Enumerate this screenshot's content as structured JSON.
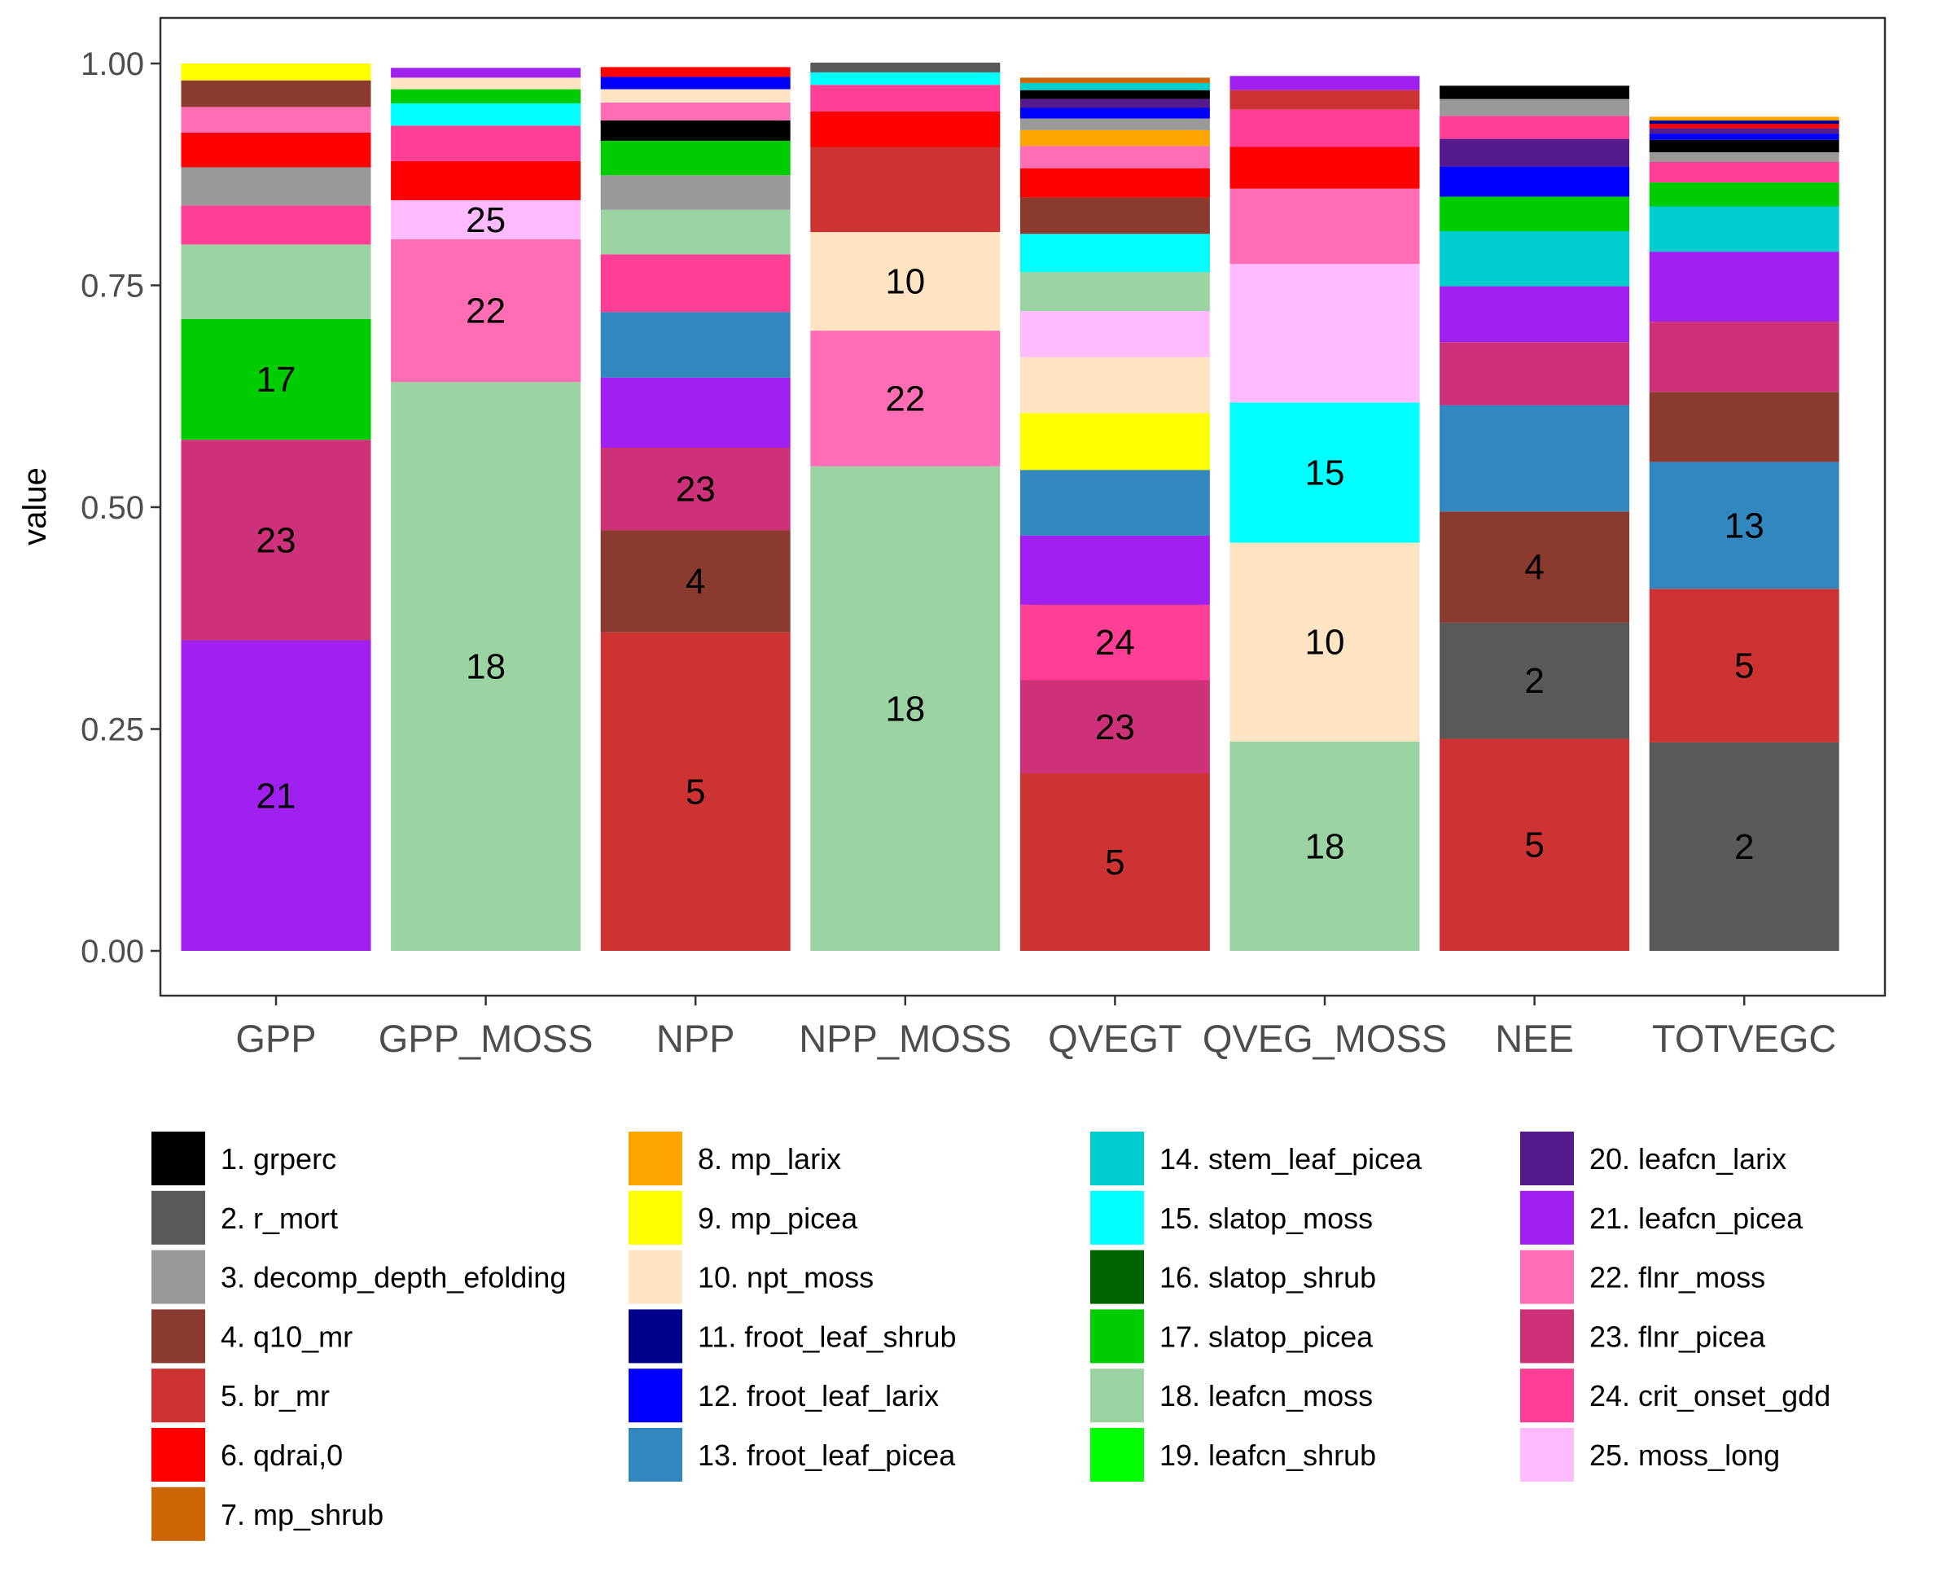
{
  "chart_data": {
    "type": "bar",
    "stacked": true,
    "xlabel": "",
    "ylabel": "value",
    "ylim": [
      -0.05,
      1.05
    ],
    "yticks": [
      {
        "value": 0.0,
        "label": "0.00"
      },
      {
        "value": 0.25,
        "label": "0.25"
      },
      {
        "value": 0.5,
        "label": "0.50"
      },
      {
        "value": 0.75,
        "label": "0.75"
      },
      {
        "value": 1.0,
        "label": "1.00"
      }
    ],
    "grid": false,
    "legend_position": "bottom",
    "categories": [
      "GPP",
      "GPP_MOSS",
      "NPP",
      "NPP_MOSS",
      "QVEGT",
      "QVEG_MOSS",
      "NEE",
      "TOTVEGC"
    ],
    "legend": [
      {
        "id": 1,
        "label": "1. grperc",
        "color": "#000000"
      },
      {
        "id": 2,
        "label": "2. r_mort",
        "color": "#595959"
      },
      {
        "id": 3,
        "label": "3. decomp_depth_efolding",
        "color": "#999999"
      },
      {
        "id": 4,
        "label": "4. q10_mr",
        "color": "#8B3A30"
      },
      {
        "id": 5,
        "label": "5. br_mr",
        "color": "#CD3333"
      },
      {
        "id": 6,
        "label": "6. qdrai,0",
        "color": "#FF0000"
      },
      {
        "id": 7,
        "label": "7. mp_shrub",
        "color": "#CD6600"
      },
      {
        "id": 8,
        "label": "8. mp_larix",
        "color": "#FFA500"
      },
      {
        "id": 9,
        "label": "9. mp_picea",
        "color": "#FFFF00"
      },
      {
        "id": 10,
        "label": "10. npt_moss",
        "color": "#FFE4C4"
      },
      {
        "id": 11,
        "label": "11. froot_leaf_shrub",
        "color": "#00008B"
      },
      {
        "id": 12,
        "label": "12. froot_leaf_larix",
        "color": "#0000FF"
      },
      {
        "id": 13,
        "label": "13. froot_leaf_picea",
        "color": "#3187BE"
      },
      {
        "id": 14,
        "label": "14. stem_leaf_picea",
        "color": "#00CDCD"
      },
      {
        "id": 15,
        "label": "15. slatop_moss",
        "color": "#00FFFF"
      },
      {
        "id": 16,
        "label": "16. slatop_shrub",
        "color": "#006400"
      },
      {
        "id": 17,
        "label": "17. slatop_picea",
        "color": "#00CD00"
      },
      {
        "id": 18,
        "label": "18. leafcn_moss",
        "color": "#9BD4A2"
      },
      {
        "id": 19,
        "label": "19. leafcn_shrub",
        "color": "#00FF00"
      },
      {
        "id": 20,
        "label": "20. leafcn_larix",
        "color": "#551A8B"
      },
      {
        "id": 21,
        "label": "21. leafcn_picea",
        "color": "#A020F0"
      },
      {
        "id": 22,
        "label": "22. flnr_moss",
        "color": "#FF6EB4"
      },
      {
        "id": 23,
        "label": "23. flnr_picea",
        "color": "#CD3278"
      },
      {
        "id": 24,
        "label": "24. crit_onset_gdd",
        "color": "#FF3E96"
      },
      {
        "id": 25,
        "label": "25. moss_long",
        "color": "#FFBBFF"
      }
    ],
    "stacks": [
      {
        "category": "GPP",
        "segments": [
          {
            "param": 21,
            "value": 0.35,
            "label": "21"
          },
          {
            "param": 23,
            "value": 0.226,
            "label": "23"
          },
          {
            "param": 17,
            "value": 0.136,
            "label": "17"
          },
          {
            "param": 18,
            "value": 0.084,
            "label": ""
          },
          {
            "param": 24,
            "value": 0.044,
            "label": ""
          },
          {
            "param": 3,
            "value": 0.043,
            "label": ""
          },
          {
            "param": 6,
            "value": 0.039,
            "label": ""
          },
          {
            "param": 22,
            "value": 0.029,
            "label": ""
          },
          {
            "param": 4,
            "value": 0.03,
            "label": ""
          },
          {
            "param": 9,
            "value": 0.019,
            "label": ""
          }
        ]
      },
      {
        "category": "GPP_MOSS",
        "segments": [
          {
            "param": 18,
            "value": 0.641,
            "label": "18"
          },
          {
            "param": 22,
            "value": 0.161,
            "label": "22"
          },
          {
            "param": 25,
            "value": 0.044,
            "label": "25"
          },
          {
            "param": 6,
            "value": 0.044,
            "label": ""
          },
          {
            "param": 24,
            "value": 0.04,
            "label": ""
          },
          {
            "param": 15,
            "value": 0.025,
            "label": ""
          },
          {
            "param": 17,
            "value": 0.016,
            "label": ""
          },
          {
            "param": 10,
            "value": 0.013,
            "label": ""
          },
          {
            "param": 21,
            "value": 0.011,
            "label": ""
          }
        ]
      },
      {
        "category": "NPP",
        "segments": [
          {
            "param": 5,
            "value": 0.359,
            "label": "5"
          },
          {
            "param": 4,
            "value": 0.115,
            "label": "4"
          },
          {
            "param": 23,
            "value": 0.093,
            "label": "23"
          },
          {
            "param": 21,
            "value": 0.079,
            "label": ""
          },
          {
            "param": 13,
            "value": 0.074,
            "label": ""
          },
          {
            "param": 24,
            "value": 0.065,
            "label": ""
          },
          {
            "param": 18,
            "value": 0.05,
            "label": ""
          },
          {
            "param": 3,
            "value": 0.039,
            "label": ""
          },
          {
            "param": 17,
            "value": 0.039,
            "label": ""
          },
          {
            "param": 1,
            "value": 0.023,
            "label": ""
          },
          {
            "param": 22,
            "value": 0.02,
            "label": ""
          },
          {
            "param": 10,
            "value": 0.015,
            "label": ""
          },
          {
            "param": 12,
            "value": 0.014,
            "label": ""
          },
          {
            "param": 6,
            "value": 0.011,
            "label": ""
          }
        ]
      },
      {
        "category": "NPP_MOSS",
        "segments": [
          {
            "param": 18,
            "value": 0.546,
            "label": "18"
          },
          {
            "param": 22,
            "value": 0.153,
            "label": "22"
          },
          {
            "param": 10,
            "value": 0.111,
            "label": "10"
          },
          {
            "param": 5,
            "value": 0.096,
            "label": ""
          },
          {
            "param": 6,
            "value": 0.04,
            "label": ""
          },
          {
            "param": 24,
            "value": 0.03,
            "label": ""
          },
          {
            "param": 15,
            "value": 0.014,
            "label": ""
          },
          {
            "param": 2,
            "value": 0.011,
            "label": ""
          }
        ]
      },
      {
        "category": "QVEGT",
        "segments": [
          {
            "param": 5,
            "value": 0.2,
            "label": "5"
          },
          {
            "param": 23,
            "value": 0.105,
            "label": "23"
          },
          {
            "param": 24,
            "value": 0.085,
            "label": "24"
          },
          {
            "param": 21,
            "value": 0.078,
            "label": ""
          },
          {
            "param": 13,
            "value": 0.074,
            "label": ""
          },
          {
            "param": 9,
            "value": 0.064,
            "label": ""
          },
          {
            "param": 10,
            "value": 0.063,
            "label": ""
          },
          {
            "param": 25,
            "value": 0.052,
            "label": ""
          },
          {
            "param": 18,
            "value": 0.044,
            "label": ""
          },
          {
            "param": 15,
            "value": 0.043,
            "label": ""
          },
          {
            "param": 4,
            "value": 0.041,
            "label": ""
          },
          {
            "param": 6,
            "value": 0.033,
            "label": ""
          },
          {
            "param": 22,
            "value": 0.025,
            "label": ""
          },
          {
            "param": 8,
            "value": 0.018,
            "label": ""
          },
          {
            "param": 3,
            "value": 0.013,
            "label": ""
          },
          {
            "param": 12,
            "value": 0.012,
            "label": ""
          },
          {
            "param": 20,
            "value": 0.01,
            "label": ""
          },
          {
            "param": 1,
            "value": 0.01,
            "label": ""
          },
          {
            "param": 14,
            "value": 0.008,
            "label": ""
          },
          {
            "param": 7,
            "value": 0.006,
            "label": ""
          }
        ]
      },
      {
        "category": "QVEG_MOSS",
        "segments": [
          {
            "param": 18,
            "value": 0.236,
            "label": "18"
          },
          {
            "param": 10,
            "value": 0.224,
            "label": "10"
          },
          {
            "param": 15,
            "value": 0.158,
            "label": "15"
          },
          {
            "param": 25,
            "value": 0.156,
            "label": ""
          },
          {
            "param": 22,
            "value": 0.085,
            "label": ""
          },
          {
            "param": 6,
            "value": 0.047,
            "label": ""
          },
          {
            "param": 24,
            "value": 0.042,
            "label": ""
          },
          {
            "param": 5,
            "value": 0.022,
            "label": ""
          },
          {
            "param": 21,
            "value": 0.016,
            "label": ""
          }
        ]
      },
      {
        "category": "NEE",
        "segments": [
          {
            "param": 5,
            "value": 0.239,
            "label": "5"
          },
          {
            "param": 2,
            "value": 0.131,
            "label": "2"
          },
          {
            "param": 4,
            "value": 0.125,
            "label": "4"
          },
          {
            "param": 13,
            "value": 0.12,
            "label": ""
          },
          {
            "param": 23,
            "value": 0.071,
            "label": ""
          },
          {
            "param": 21,
            "value": 0.063,
            "label": ""
          },
          {
            "param": 14,
            "value": 0.062,
            "label": ""
          },
          {
            "param": 17,
            "value": 0.039,
            "label": ""
          },
          {
            "param": 12,
            "value": 0.034,
            "label": ""
          },
          {
            "param": 20,
            "value": 0.031,
            "label": ""
          },
          {
            "param": 24,
            "value": 0.026,
            "label": ""
          },
          {
            "param": 3,
            "value": 0.019,
            "label": ""
          },
          {
            "param": 1,
            "value": 0.015,
            "label": ""
          }
        ]
      },
      {
        "category": "TOTVEGC",
        "segments": [
          {
            "param": 2,
            "value": 0.235,
            "label": "2"
          },
          {
            "param": 5,
            "value": 0.173,
            "label": "5"
          },
          {
            "param": 13,
            "value": 0.143,
            "label": "13"
          },
          {
            "param": 4,
            "value": 0.079,
            "label": ""
          },
          {
            "param": 23,
            "value": 0.079,
            "label": ""
          },
          {
            "param": 21,
            "value": 0.079,
            "label": ""
          },
          {
            "param": 14,
            "value": 0.051,
            "label": ""
          },
          {
            "param": 17,
            "value": 0.027,
            "label": ""
          },
          {
            "param": 24,
            "value": 0.023,
            "label": ""
          },
          {
            "param": 3,
            "value": 0.011,
            "label": ""
          },
          {
            "param": 1,
            "value": 0.014,
            "label": ""
          },
          {
            "param": 12,
            "value": 0.007,
            "label": ""
          },
          {
            "param": 20,
            "value": 0.006,
            "label": ""
          },
          {
            "param": 6,
            "value": 0.005,
            "label": ""
          },
          {
            "param": 11,
            "value": 0.004,
            "label": ""
          },
          {
            "param": 8,
            "value": 0.004,
            "label": ""
          }
        ]
      }
    ]
  }
}
